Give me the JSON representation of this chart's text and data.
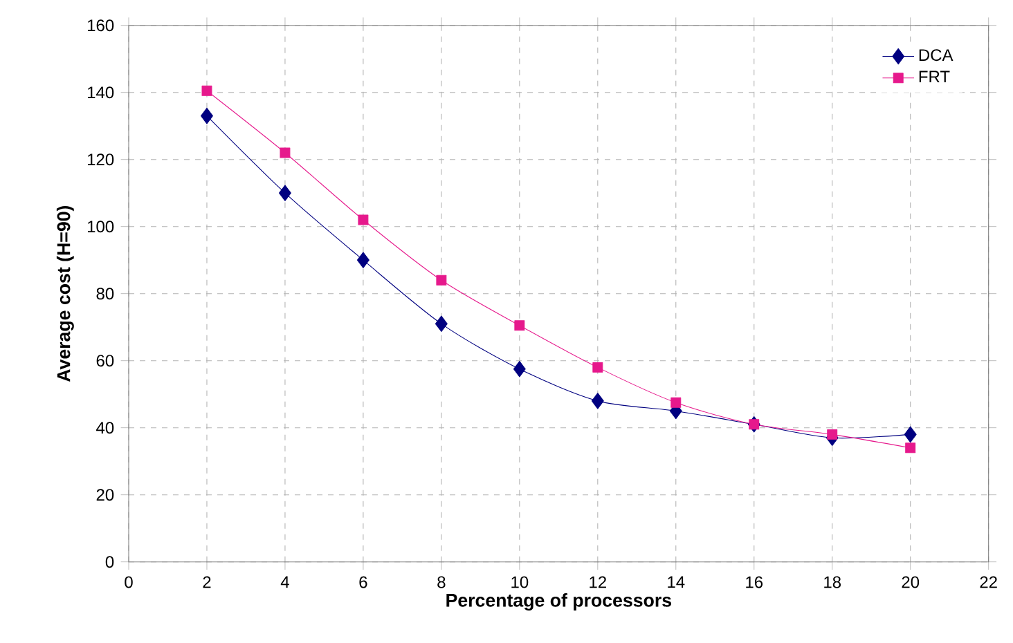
{
  "chart_data": {
    "type": "line",
    "xlabel": "Percentage of processors",
    "ylabel": "Average cost (H=90)",
    "x": [
      2,
      4,
      6,
      8,
      10,
      12,
      14,
      16,
      18,
      20
    ],
    "series": [
      {
        "name": "DCA",
        "color": "#000080",
        "marker": "diamond",
        "values": [
          133,
          110,
          90,
          71,
          57.5,
          48,
          45,
          41,
          37,
          38
        ]
      },
      {
        "name": "FRT",
        "color": "#e6198c",
        "marker": "square",
        "values": [
          140.5,
          122,
          102,
          84,
          70.5,
          58,
          47.5,
          41,
          38,
          34
        ]
      }
    ],
    "xlim": [
      0,
      22
    ],
    "xticks": [
      0,
      2,
      4,
      6,
      8,
      10,
      12,
      14,
      16,
      18,
      20,
      22
    ],
    "ylim": [
      0,
      160
    ],
    "yticks": [
      0,
      20,
      40,
      60,
      80,
      100,
      120,
      140,
      160
    ],
    "grid": true,
    "legend": "top right",
    "line_style": "solid"
  }
}
